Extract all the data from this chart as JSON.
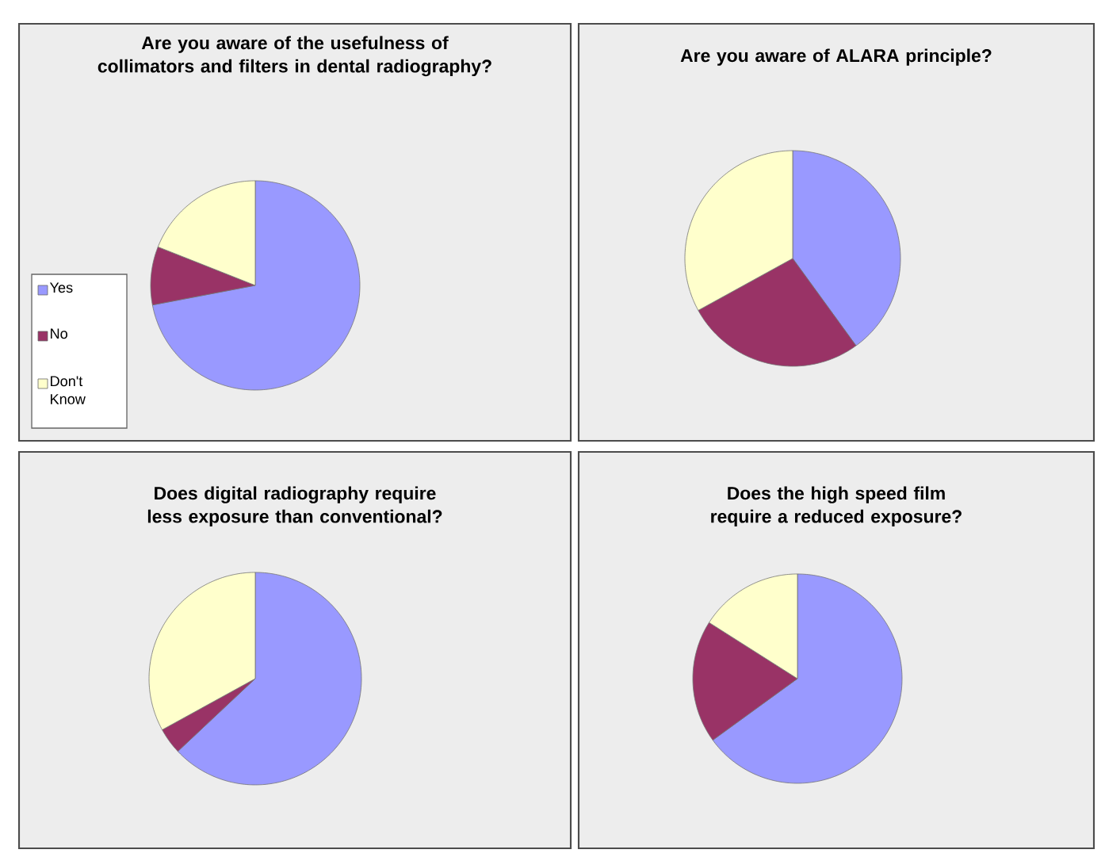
{
  "chart_data": [
    {
      "type": "pie",
      "title": "Are you aware of the usefulness of collimators and filters in dental radiography?",
      "categories": [
        "Yes",
        "No",
        "Don't Know"
      ],
      "values": [
        72,
        9,
        19
      ],
      "colors": [
        "#9999ff",
        "#993366",
        "#ffffcc"
      ],
      "legend": "left"
    },
    {
      "type": "pie",
      "title": "Are you aware of  ALARA principle?",
      "categories": [
        null,
        null,
        null
      ],
      "values": [
        40,
        27,
        33
      ],
      "colors": [
        "#9999ff",
        "#993366",
        "#ffffcc"
      ]
    },
    {
      "type": "pie",
      "title": "Does digital radiography require less exposure than conventional?",
      "categories": [
        null,
        null,
        null
      ],
      "values": [
        63,
        4,
        33
      ],
      "colors": [
        "#9999ff",
        "#993366",
        "#ffffcc"
      ]
    },
    {
      "type": "pie",
      "title": "Does the high speed film require a reduced exposure?",
      "categories": [
        null,
        null,
        null
      ],
      "values": [
        65,
        19,
        16
      ],
      "colors": [
        "#9999ff",
        "#993366",
        "#ffffcc"
      ]
    }
  ]
}
